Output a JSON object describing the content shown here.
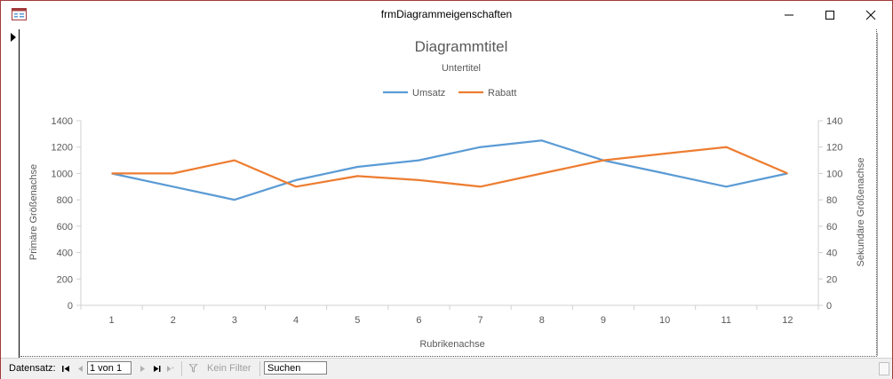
{
  "window": {
    "title": "frmDiagrammeigenschaften"
  },
  "icons": {
    "app": "form-icon",
    "minimize": "minimize-icon",
    "maximize": "maximize-icon",
    "close": "close-icon"
  },
  "chart": {
    "title": "Diagrammtitel",
    "subtitle": "Untertitel",
    "xlabel": "Rubrikenachse",
    "ylabel_primary": "Primäre Größenachse",
    "ylabel_secondary": "Sekundäre Größenachse"
  },
  "chart_data": {
    "type": "line",
    "title": "Diagrammtitel",
    "subtitle": "Untertitel",
    "xlabel": "Rubrikenachse",
    "ylabel": "Primäre Größenachse",
    "y2label": "Sekundäre Größenachse",
    "categories": [
      "1",
      "2",
      "3",
      "4",
      "5",
      "6",
      "7",
      "8",
      "9",
      "10",
      "11",
      "12"
    ],
    "ylim": [
      0,
      1400
    ],
    "y2lim": [
      0,
      140
    ],
    "yticks": [
      "0",
      "200",
      "400",
      "600",
      "800",
      "1000",
      "1200",
      "1400"
    ],
    "y2ticks": [
      "0",
      "20",
      "40",
      "60",
      "80",
      "100",
      "120",
      "140"
    ],
    "legend_position": "top",
    "grid": false,
    "series": [
      {
        "name": "Umsatz",
        "axis": "primary",
        "color": "#5b9bd5",
        "values": [
          1000,
          900,
          800,
          950,
          1050,
          1100,
          1200,
          1250,
          1100,
          1000,
          900,
          1000
        ]
      },
      {
        "name": "Rabatt",
        "axis": "secondary",
        "color": "#ed7d31",
        "values": [
          100,
          100,
          110,
          90,
          98,
          95,
          90,
          100,
          110,
          115,
          120,
          100
        ]
      }
    ]
  },
  "navbar": {
    "label": "Datensatz:",
    "record": "1 von 1",
    "filter": "Kein Filter",
    "search": "Suchen"
  }
}
